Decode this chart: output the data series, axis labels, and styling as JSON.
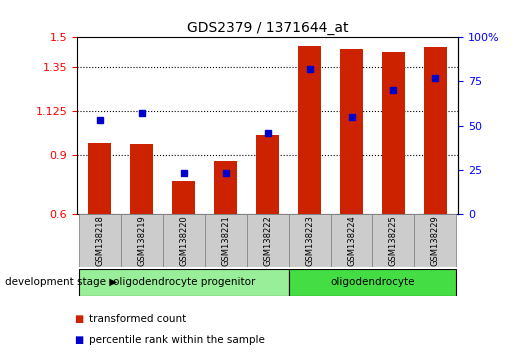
{
  "title": "GDS2379 / 1371644_at",
  "samples": [
    "GSM138218",
    "GSM138219",
    "GSM138220",
    "GSM138221",
    "GSM138222",
    "GSM138223",
    "GSM138224",
    "GSM138225",
    "GSM138229"
  ],
  "transformed_count": [
    0.962,
    0.958,
    0.77,
    0.87,
    1.005,
    1.455,
    1.44,
    1.425,
    1.45
  ],
  "percentile_rank": [
    53,
    57,
    23,
    23,
    46,
    82,
    55,
    70,
    77
  ],
  "ylim_left": [
    0.6,
    1.5
  ],
  "ylim_right": [
    0,
    100
  ],
  "yticks_left": [
    0.6,
    0.9,
    1.125,
    1.35,
    1.5
  ],
  "ytick_labels_left": [
    "0.6",
    "0.9",
    "1.125",
    "1.35",
    "1.5"
  ],
  "yticks_right": [
    0,
    25,
    50,
    75,
    100
  ],
  "ytick_labels_right": [
    "0",
    "25",
    "50",
    "75",
    "100%"
  ],
  "bar_color": "#cc2200",
  "dot_color": "#0000cc",
  "bg_color_plot": "#ffffff",
  "group1_label": "oligodendrocyte progenitor",
  "group2_label": "oligodendrocyte",
  "group1_indices": [
    0,
    1,
    2,
    3,
    4
  ],
  "group2_indices": [
    5,
    6,
    7,
    8
  ],
  "group1_bg": "#99ee99",
  "group2_bg": "#44dd44",
  "sample_bg": "#cccccc",
  "xlabel": "development stage",
  "legend_bar_label": "transformed count",
  "legend_dot_label": "percentile rank within the sample",
  "fig_width": 5.3,
  "fig_height": 3.54,
  "dpi": 100
}
